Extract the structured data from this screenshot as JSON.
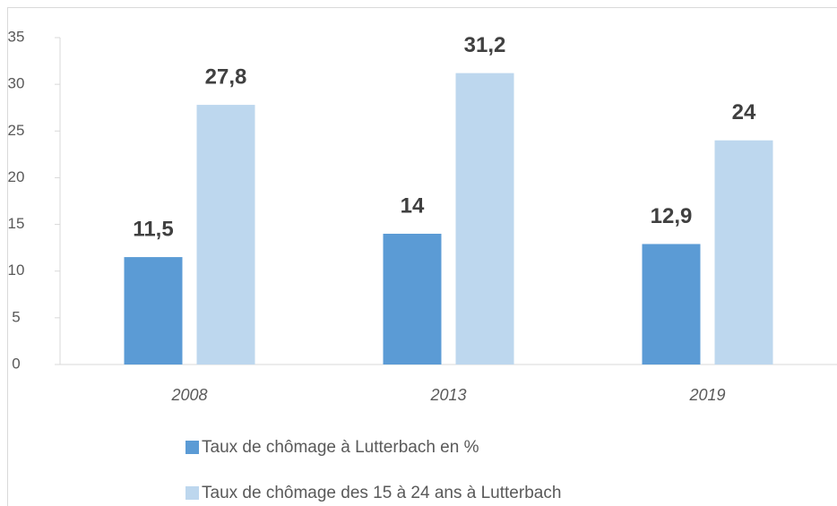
{
  "chart_data": {
    "type": "bar",
    "categories": [
      "2008",
      "2013",
      "2019"
    ],
    "series": [
      {
        "name": "Taux de chômage à Lutterbach en %",
        "color": "#5b9bd5",
        "values": [
          11.5,
          14,
          12.9
        ],
        "value_labels": [
          "11,5",
          "14",
          "12,9"
        ]
      },
      {
        "name": "Taux de chômage des 15 à 24 ans à Lutterbach",
        "color": "#bdd7ee",
        "values": [
          27.8,
          31.2,
          24
        ],
        "value_labels": [
          "27,8",
          "31,2",
          "24"
        ]
      }
    ],
    "ylim": [
      0,
      35
    ],
    "yticks": [
      0,
      5,
      10,
      15,
      20,
      25,
      30,
      35
    ],
    "grid": false,
    "legend": "bottom"
  }
}
